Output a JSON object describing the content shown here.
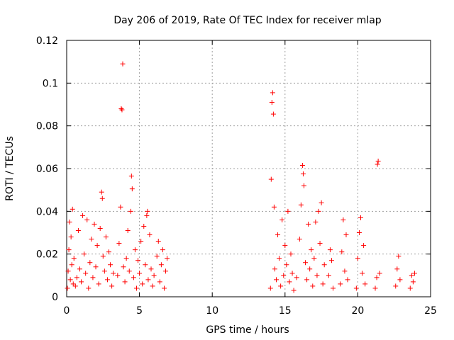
{
  "chart_data": {
    "type": "scatter",
    "title": "Day 206 of 2019, Rate Of TEC Index for receiver mlap",
    "xlabel": "GPS time / hours",
    "ylabel": "ROTI / TECUs",
    "xlim": [
      0,
      25
    ],
    "ylim": [
      0,
      0.12
    ],
    "xticks": [
      0,
      5,
      10,
      15,
      20,
      25
    ],
    "xtick_labels": [
      "0",
      "5",
      "10",
      "15",
      "20",
      "25"
    ],
    "yticks": [
      0,
      0.02,
      0.04,
      0.06,
      0.08,
      0.1,
      0.12
    ],
    "ytick_labels": [
      "0",
      "0.02",
      "0.04",
      "0.06",
      "0.08",
      "0.1",
      "0.12"
    ],
    "grid": true,
    "marker": "+",
    "color": "#ff0000",
    "series": [
      {
        "name": "ROTI",
        "points": [
          [
            0.05,
            0.004
          ],
          [
            0.1,
            0.012
          ],
          [
            0.15,
            0.022
          ],
          [
            0.2,
            0.035
          ],
          [
            0.25,
            0.008
          ],
          [
            0.3,
            0.028
          ],
          [
            0.35,
            0.015
          ],
          [
            0.4,
            0.041
          ],
          [
            0.45,
            0.006
          ],
          [
            0.5,
            0.018
          ],
          [
            0.6,
            0.005
          ],
          [
            0.7,
            0.009
          ],
          [
            0.8,
            0.031
          ],
          [
            0.9,
            0.013
          ],
          [
            1.0,
            0.007
          ],
          [
            1.1,
            0.038
          ],
          [
            1.2,
            0.02
          ],
          [
            1.3,
            0.011
          ],
          [
            1.4,
            0.036
          ],
          [
            1.5,
            0.004
          ],
          [
            1.6,
            0.016
          ],
          [
            1.7,
            0.027
          ],
          [
            1.8,
            0.009
          ],
          [
            1.9,
            0.034
          ],
          [
            2.0,
            0.014
          ],
          [
            2.1,
            0.024
          ],
          [
            2.2,
            0.006
          ],
          [
            2.3,
            0.032
          ],
          [
            2.4,
            0.049
          ],
          [
            2.45,
            0.046
          ],
          [
            2.5,
            0.019
          ],
          [
            2.6,
            0.012
          ],
          [
            2.7,
            0.028
          ],
          [
            2.8,
            0.008
          ],
          [
            2.9,
            0.021
          ],
          [
            3.0,
            0.015
          ],
          [
            3.1,
            0.005
          ],
          [
            3.2,
            0.011
          ],
          [
            3.5,
            0.01
          ],
          [
            3.6,
            0.025
          ],
          [
            3.7,
            0.042
          ],
          [
            3.75,
            0.088
          ],
          [
            3.8,
            0.0875
          ],
          [
            3.85,
            0.109
          ],
          [
            3.9,
            0.014
          ],
          [
            4.0,
            0.007
          ],
          [
            4.1,
            0.018
          ],
          [
            4.2,
            0.031
          ],
          [
            4.3,
            0.012
          ],
          [
            4.4,
            0.04
          ],
          [
            4.45,
            0.0565
          ],
          [
            4.5,
            0.0505
          ],
          [
            4.6,
            0.009
          ],
          [
            4.7,
            0.022
          ],
          [
            4.8,
            0.004
          ],
          [
            4.9,
            0.017
          ],
          [
            5.0,
            0.011
          ],
          [
            5.1,
            0.026
          ],
          [
            5.2,
            0.006
          ],
          [
            5.3,
            0.033
          ],
          [
            5.4,
            0.015
          ],
          [
            5.5,
            0.038
          ],
          [
            5.55,
            0.04
          ],
          [
            5.6,
            0.008
          ],
          [
            5.7,
            0.029
          ],
          [
            5.8,
            0.013
          ],
          [
            5.9,
            0.005
          ],
          [
            6.0,
            0.01
          ],
          [
            6.2,
            0.019
          ],
          [
            6.3,
            0.026
          ],
          [
            6.4,
            0.007
          ],
          [
            6.5,
            0.015
          ],
          [
            6.6,
            0.022
          ],
          [
            6.7,
            0.004
          ],
          [
            6.8,
            0.012
          ],
          [
            6.9,
            0.018
          ],
          [
            14.0,
            0.004
          ],
          [
            14.05,
            0.055
          ],
          [
            14.1,
            0.091
          ],
          [
            14.15,
            0.0955
          ],
          [
            14.2,
            0.0855
          ],
          [
            14.25,
            0.042
          ],
          [
            14.3,
            0.013
          ],
          [
            14.4,
            0.008
          ],
          [
            14.5,
            0.029
          ],
          [
            14.6,
            0.018
          ],
          [
            14.7,
            0.005
          ],
          [
            14.8,
            0.036
          ],
          [
            14.9,
            0.01
          ],
          [
            15.0,
            0.024
          ],
          [
            15.1,
            0.015
          ],
          [
            15.2,
            0.04
          ],
          [
            15.3,
            0.007
          ],
          [
            15.4,
            0.02
          ],
          [
            15.5,
            0.011
          ],
          [
            15.6,
            0.003
          ],
          [
            15.8,
            0.009
          ],
          [
            16.0,
            0.027
          ],
          [
            16.1,
            0.043
          ],
          [
            16.2,
            0.0615
          ],
          [
            16.25,
            0.0575
          ],
          [
            16.3,
            0.052
          ],
          [
            16.4,
            0.016
          ],
          [
            16.5,
            0.008
          ],
          [
            16.6,
            0.034
          ],
          [
            16.7,
            0.013
          ],
          [
            16.8,
            0.022
          ],
          [
            16.9,
            0.005
          ],
          [
            17.0,
            0.018
          ],
          [
            17.1,
            0.035
          ],
          [
            17.2,
            0.01
          ],
          [
            17.3,
            0.04
          ],
          [
            17.4,
            0.025
          ],
          [
            17.5,
            0.044
          ],
          [
            17.6,
            0.006
          ],
          [
            17.7,
            0.015
          ],
          [
            18.0,
            0.01
          ],
          [
            18.1,
            0.022
          ],
          [
            18.2,
            0.017
          ],
          [
            18.3,
            0.004
          ],
          [
            18.8,
            0.006
          ],
          [
            18.9,
            0.021
          ],
          [
            19.0,
            0.036
          ],
          [
            19.1,
            0.012
          ],
          [
            19.2,
            0.029
          ],
          [
            19.3,
            0.008
          ],
          [
            19.9,
            0.004
          ],
          [
            20.0,
            0.018
          ],
          [
            20.1,
            0.03
          ],
          [
            20.2,
            0.037
          ],
          [
            20.3,
            0.011
          ],
          [
            20.4,
            0.024
          ],
          [
            20.5,
            0.006
          ],
          [
            21.2,
            0.004
          ],
          [
            21.3,
            0.009
          ],
          [
            21.35,
            0.062
          ],
          [
            21.4,
            0.0635
          ],
          [
            21.5,
            0.011
          ],
          [
            22.6,
            0.005
          ],
          [
            22.7,
            0.013
          ],
          [
            22.8,
            0.019
          ],
          [
            22.9,
            0.008
          ],
          [
            23.6,
            0.004
          ],
          [
            23.7,
            0.01
          ],
          [
            23.8,
            0.007
          ],
          [
            23.9,
            0.011
          ]
        ]
      }
    ]
  }
}
